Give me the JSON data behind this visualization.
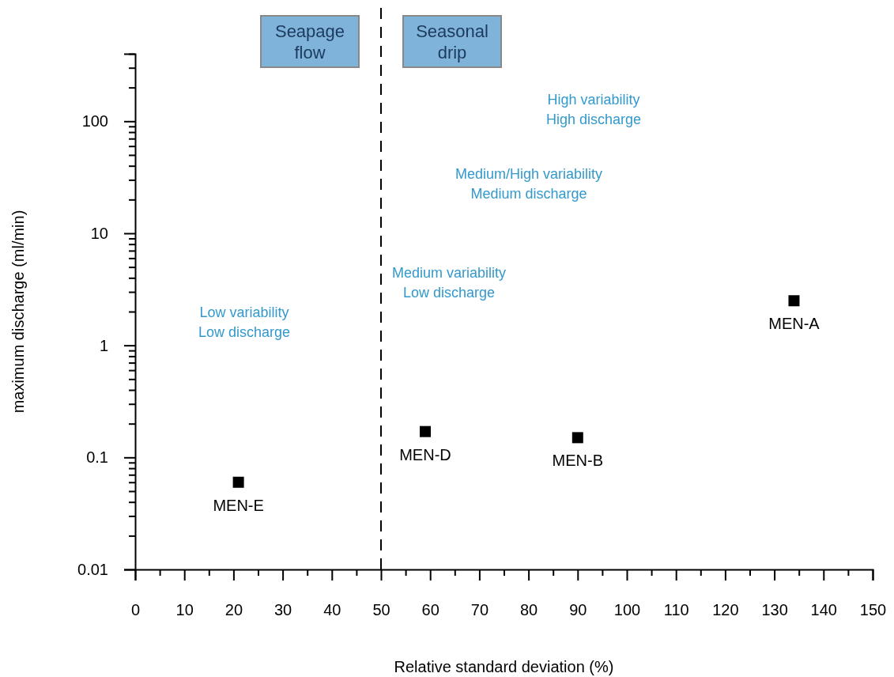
{
  "chart_data": {
    "type": "scatter",
    "xlabel": "Relative standard deviation (%)",
    "ylabel": "maximum discharge (ml/min)",
    "xlim": [
      0,
      150
    ],
    "xticks": [
      0,
      {
        "value": 5,
        "label": null
      },
      10,
      {
        "value": 15,
        "label": null
      },
      20,
      {
        "value": 25,
        "label": null
      },
      30,
      {
        "value": 35,
        "label": null
      },
      40,
      {
        "value": 45,
        "label": null
      },
      50,
      {
        "value": 55,
        "label": null
      },
      60,
      {
        "value": 65,
        "label": null
      },
      70,
      {
        "value": 75,
        "label": null
      },
      80,
      {
        "value": 85,
        "label": null
      },
      90,
      {
        "value": 95,
        "label": null
      },
      100,
      {
        "value": 105,
        "label": null
      },
      110,
      {
        "value": 115,
        "label": null
      },
      120,
      {
        "value": 125,
        "label": null
      },
      130,
      {
        "value": 135,
        "label": null
      },
      140,
      {
        "value": 145,
        "label": null
      },
      150
    ],
    "ylim": [
      0.01,
      400
    ],
    "log": true,
    "yticks": [
      0.01,
      {
        "value": 0.02,
        "label": null
      },
      {
        "value": 0.03,
        "label": null
      },
      {
        "value": 0.04,
        "label": null
      },
      {
        "value": 0.05,
        "label": null
      },
      {
        "value": 0.06,
        "label": null
      },
      {
        "value": 0.07,
        "label": null
      },
      {
        "value": 0.08,
        "label": null
      },
      {
        "value": 0.09,
        "label": null
      },
      0.1,
      {
        "value": 0.2,
        "label": null
      },
      {
        "value": 0.3,
        "label": null
      },
      {
        "value": 0.4,
        "label": null
      },
      {
        "value": 0.5,
        "label": null
      },
      {
        "value": 0.6,
        "label": null
      },
      {
        "value": 0.7,
        "label": null
      },
      {
        "value": 0.8,
        "label": null
      },
      {
        "value": 0.9,
        "label": null
      },
      1,
      {
        "value": 2,
        "label": null
      },
      {
        "value": 3,
        "label": null
      },
      {
        "value": 4,
        "label": null
      },
      {
        "value": 5,
        "label": null
      },
      {
        "value": 6,
        "label": null
      },
      {
        "value": 7,
        "label": null
      },
      {
        "value": 8,
        "label": null
      },
      {
        "value": 9,
        "label": null
      },
      10,
      {
        "value": 20,
        "label": null
      },
      {
        "value": 30,
        "label": null
      },
      {
        "value": 40,
        "label": null
      },
      {
        "value": 50,
        "label": null
      },
      {
        "value": 60,
        "label": null
      },
      {
        "value": 70,
        "label": null
      },
      {
        "value": 80,
        "label": null
      },
      {
        "value": 90,
        "label": null
      },
      100,
      {
        "value": 200,
        "label": null
      },
      {
        "value": 300,
        "label": null
      },
      {
        "value": 400,
        "label": null
      }
    ],
    "marker": "square",
    "grid": false,
    "legend": false,
    "series": [
      {
        "name": "MEN-E",
        "color": "#000000",
        "x": [
          21
        ],
        "values": [
          0.06
        ]
      },
      {
        "name": "MEN-D",
        "color": "#000000",
        "x": [
          59
        ],
        "values": [
          0.17
        ]
      },
      {
        "name": "MEN-B",
        "color": "#000000",
        "x": [
          90
        ],
        "values": [
          0.15
        ]
      },
      {
        "name": "MEN-A",
        "color": "#000000",
        "x": [
          134
        ],
        "values": [
          2.5
        ]
      }
    ],
    "ref_lines": [
      {
        "axis": "x",
        "value": 50,
        "line_style": "dashed",
        "color": "#000000"
      }
    ],
    "annotations": [
      "Seapage\nflow",
      "Seasonal\ndrip",
      "High variability\nHigh discharge",
      "Medium/High variability\nMedium discharge",
      "Medium variability\nLow discharge",
      "Low variability\nLow discharge"
    ]
  }
}
